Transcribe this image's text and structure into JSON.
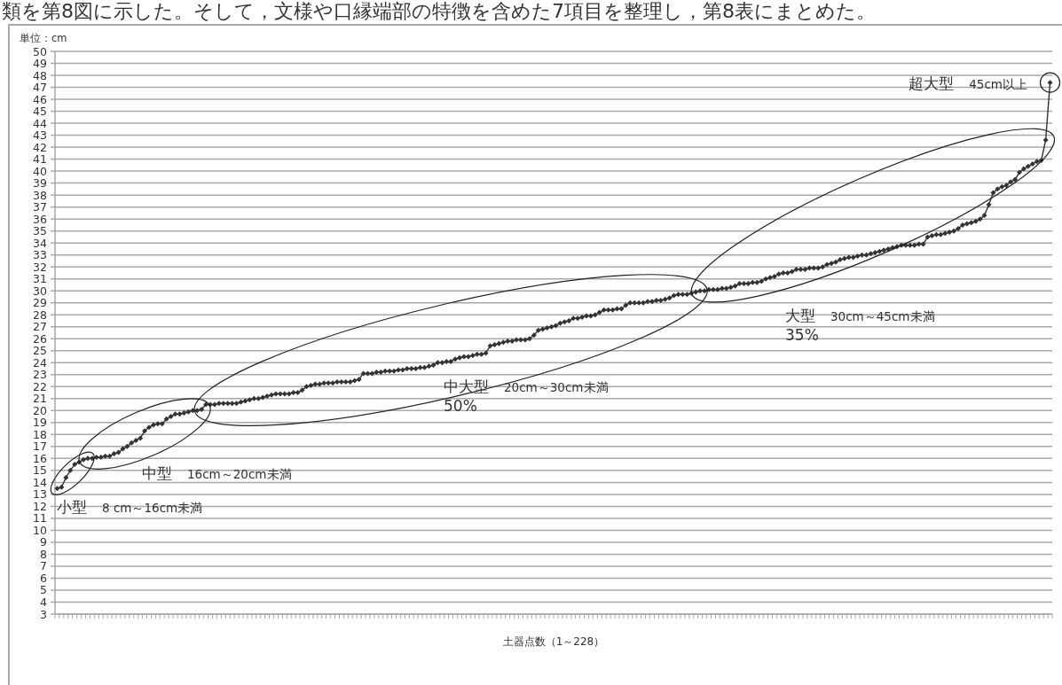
{
  "chart_data": {
    "type": "line",
    "ylabel": "単位：cm",
    "xlabel": "土器点数（1～228）",
    "annotations": [
      "類を第8図に示した。そして，文様や口縁端部の特徴を含めた7項目を整理し，第8表にまとめた。",
      "小型　8 cm～16cm未満",
      "中型　16cm～20cm未満",
      "中大型　20cm～30cm未満\n50%",
      "大型　30cm～45cm未満\n35%",
      "超大型　45cm以上"
    ],
    "categories": [
      null,
      null,
      null,
      null,
      null,
      null,
      null,
      null,
      null,
      null,
      null,
      null,
      null,
      null,
      null,
      null,
      null,
      null,
      null,
      null,
      null,
      null,
      null,
      null,
      null,
      null,
      null,
      null,
      null,
      null,
      null,
      null,
      null,
      null,
      null,
      null,
      null,
      null,
      null,
      null,
      null,
      null,
      null,
      null,
      null,
      null,
      null,
      null,
      null,
      null,
      null,
      null,
      null,
      null,
      null,
      null,
      null,
      null,
      null,
      null,
      null,
      null,
      null,
      null,
      null,
      null,
      null,
      null,
      null,
      null,
      null,
      null,
      null,
      null,
      null,
      null,
      null,
      null,
      null,
      null,
      null,
      null,
      null,
      null,
      null,
      null,
      null,
      null,
      null,
      null,
      null,
      null,
      null,
      null,
      null,
      null,
      null,
      null,
      null,
      null,
      null,
      null,
      null,
      null,
      null,
      null,
      null,
      null,
      null,
      null,
      null,
      null,
      null,
      null,
      null,
      null,
      null,
      null,
      null,
      null,
      null,
      null,
      null,
      null,
      null,
      null,
      null,
      null,
      null,
      null,
      null,
      null,
      null,
      null,
      null,
      null,
      null,
      null,
      null,
      null,
      null,
      null,
      null,
      null,
      null,
      null,
      null,
      null,
      null,
      null,
      null,
      null,
      null,
      null,
      null,
      null,
      null,
      null,
      null,
      null,
      null,
      null,
      null,
      null,
      null,
      null,
      null,
      null,
      null,
      null,
      null,
      null,
      null,
      null,
      null,
      null,
      null,
      null,
      null,
      null,
      null,
      null,
      null,
      null,
      null,
      null,
      null,
      null,
      null,
      null,
      null,
      null,
      null,
      null,
      null,
      null,
      null,
      null,
      null,
      null,
      null,
      null,
      null,
      null,
      null,
      null,
      null,
      null,
      null,
      null,
      null,
      null,
      null,
      null,
      null,
      null,
      null,
      null,
      null,
      null,
      null,
      null,
      null,
      null,
      null,
      null,
      null,
      null
    ],
    "series": [
      {
        "color": "#333333",
        "values": [
          13.5,
          13.6,
          14.4,
          15.0,
          15.5,
          15.7,
          15.9,
          16.0,
          16.0,
          16.1,
          16.1,
          16.2,
          16.2,
          16.4,
          16.5,
          16.8,
          17.0,
          17.3,
          17.5,
          17.7,
          18.3,
          18.6,
          18.8,
          18.9,
          18.9,
          19.3,
          19.5,
          19.7,
          19.7,
          19.8,
          19.9,
          20.0,
          20.0,
          20.1,
          20.5,
          20.5,
          20.5,
          20.6,
          20.6,
          20.6,
          20.6,
          20.6,
          20.7,
          20.8,
          20.9,
          21.0,
          21.0,
          21.1,
          21.2,
          21.3,
          21.4,
          21.4,
          21.4,
          21.4,
          21.5,
          21.5,
          21.7,
          22.0,
          22.1,
          22.2,
          22.2,
          22.3,
          22.3,
          22.3,
          22.4,
          22.4,
          22.4,
          22.4,
          22.5,
          22.6,
          23.1,
          23.1,
          23.1,
          23.2,
          23.2,
          23.3,
          23.3,
          23.3,
          23.4,
          23.4,
          23.5,
          23.5,
          23.5,
          23.6,
          23.6,
          23.7,
          23.8,
          24.0,
          24.0,
          24.1,
          24.1,
          24.3,
          24.4,
          24.5,
          24.5,
          24.6,
          24.7,
          24.7,
          24.8,
          25.4,
          25.5,
          25.6,
          25.7,
          25.8,
          25.8,
          25.9,
          25.9,
          25.9,
          26.0,
          26.3,
          26.7,
          26.8,
          26.9,
          27.0,
          27.1,
          27.3,
          27.4,
          27.5,
          27.7,
          27.7,
          27.8,
          27.9,
          27.9,
          28.0,
          28.2,
          28.4,
          28.4,
          28.4,
          28.5,
          28.5,
          28.8,
          29.0,
          29.0,
          29.0,
          29.0,
          29.1,
          29.1,
          29.2,
          29.2,
          29.3,
          29.4,
          29.6,
          29.7,
          29.7,
          29.7,
          29.8,
          29.9,
          30.0,
          30.0,
          30.1,
          30.1,
          30.1,
          30.2,
          30.2,
          30.3,
          30.4,
          30.6,
          30.6,
          30.6,
          30.7,
          30.7,
          30.8,
          31.0,
          31.1,
          31.2,
          31.4,
          31.5,
          31.5,
          31.6,
          31.8,
          31.8,
          31.8,
          31.9,
          31.9,
          31.9,
          32.0,
          32.2,
          32.3,
          32.4,
          32.6,
          32.7,
          32.8,
          32.8,
          32.9,
          33.0,
          33.0,
          33.1,
          33.2,
          33.3,
          33.4,
          33.5,
          33.6,
          33.7,
          33.8,
          33.8,
          33.8,
          33.8,
          33.9,
          33.9,
          34.5,
          34.6,
          34.7,
          34.7,
          34.8,
          34.9,
          35.0,
          35.2,
          35.5,
          35.6,
          35.7,
          35.8,
          36.0,
          36.3,
          37.2,
          38.2,
          38.5,
          38.7,
          38.8,
          39.1,
          39.3,
          39.9,
          40.2,
          40.4,
          40.6,
          40.8,
          40.9,
          42.6,
          47.4
        ]
      }
    ],
    "ylim": [
      3,
      50
    ],
    "yticks": [
      3,
      4,
      5,
      6,
      7,
      8,
      9,
      10,
      11,
      12,
      13,
      14,
      15,
      16,
      17,
      18,
      19,
      20,
      21,
      22,
      23,
      24,
      25,
      26,
      27,
      28,
      29,
      30,
      31,
      32,
      33,
      34,
      35,
      36,
      37,
      38,
      39,
      40,
      41,
      42,
      43,
      44,
      45,
      46,
      47,
      48,
      49,
      50
    ],
    "grid": "y",
    "marker": "diamond",
    "tick_labels": "y"
  }
}
